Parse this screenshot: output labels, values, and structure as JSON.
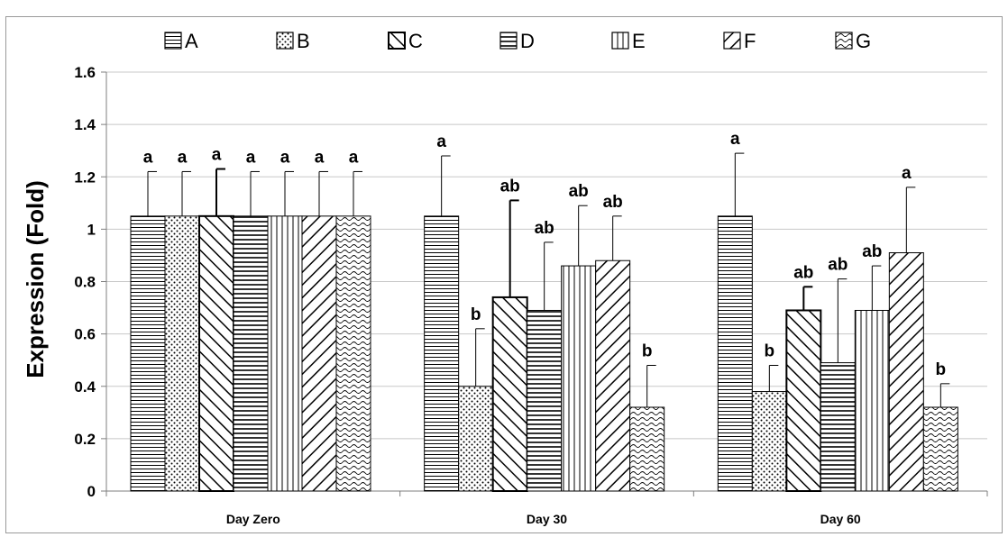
{
  "chart_data": {
    "type": "bar",
    "ylabel": "Expression (Fold)",
    "xlabel": "",
    "ylim": [
      0,
      1.6
    ],
    "yticks": [
      0,
      0.2,
      0.4,
      0.6,
      0.8,
      1,
      1.2,
      1.4,
      1.6
    ],
    "ytick_labels": [
      "0",
      "0.2",
      "0.4",
      "0.6",
      "0.8",
      "1",
      "1.2",
      "1.4",
      "1.6"
    ],
    "grid": true,
    "legend_position": "top",
    "categories": [
      "Day Zero",
      "Day 30",
      "Day 60"
    ],
    "series": [
      {
        "name": "A",
        "pattern": "horizontal",
        "values": [
          1.05,
          1.05,
          1.05
        ],
        "errors": [
          0.17,
          0.23,
          0.24
        ],
        "labels": [
          "a",
          "a",
          "a"
        ]
      },
      {
        "name": "B",
        "pattern": "dots",
        "values": [
          1.05,
          0.4,
          0.38
        ],
        "errors": [
          0.17,
          0.22,
          0.1
        ],
        "labels": [
          "a",
          "b",
          "b"
        ]
      },
      {
        "name": "C",
        "pattern": "diag-back",
        "values": [
          1.05,
          0.74,
          0.69
        ],
        "errors": [
          0.18,
          0.37,
          0.09
        ],
        "labels": [
          "a",
          "ab",
          "ab"
        ]
      },
      {
        "name": "D",
        "pattern": "horizontal-thick",
        "values": [
          1.05,
          0.69,
          0.49
        ],
        "errors": [
          0.17,
          0.26,
          0.32
        ],
        "labels": [
          "a",
          "ab",
          "ab"
        ]
      },
      {
        "name": "E",
        "pattern": "vertical",
        "values": [
          1.05,
          0.86,
          0.69
        ],
        "errors": [
          0.17,
          0.23,
          0.17
        ],
        "labels": [
          "a",
          "ab",
          "ab"
        ]
      },
      {
        "name": "F",
        "pattern": "diag-fwd",
        "values": [
          1.05,
          0.88,
          0.91
        ],
        "errors": [
          0.17,
          0.17,
          0.25
        ],
        "labels": [
          "a",
          "ab",
          "a"
        ]
      },
      {
        "name": "G",
        "pattern": "wave",
        "values": [
          1.05,
          0.32,
          0.32
        ],
        "errors": [
          0.17,
          0.16,
          0.09
        ],
        "labels": [
          "a",
          "b",
          "b"
        ]
      }
    ]
  }
}
